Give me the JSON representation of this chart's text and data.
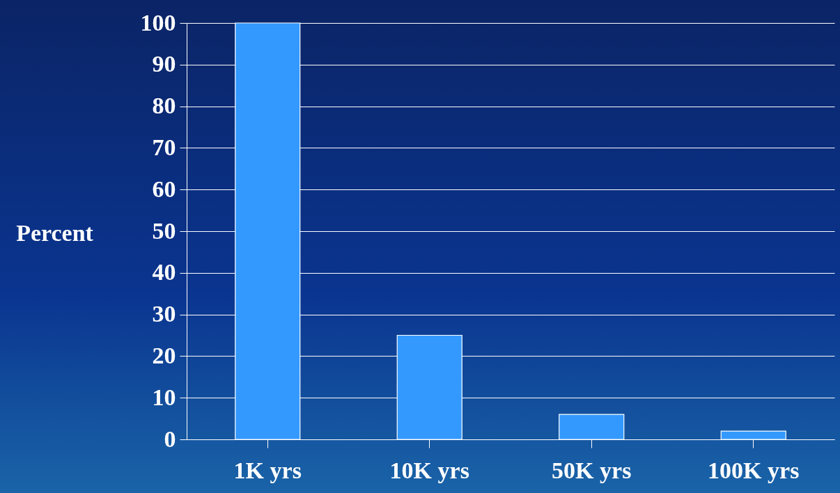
{
  "chart_data": {
    "type": "bar",
    "ylabel": "Percent",
    "categories": [
      "1K yrs",
      "10K yrs",
      "50K yrs",
      "100K yrs"
    ],
    "values": [
      100,
      25,
      6,
      2
    ],
    "color": "#3399ff",
    "ylim": [
      0,
      100
    ],
    "yticks": [
      0,
      10,
      20,
      30,
      40,
      50,
      60,
      70,
      80,
      90,
      100
    ],
    "grid": "y"
  }
}
